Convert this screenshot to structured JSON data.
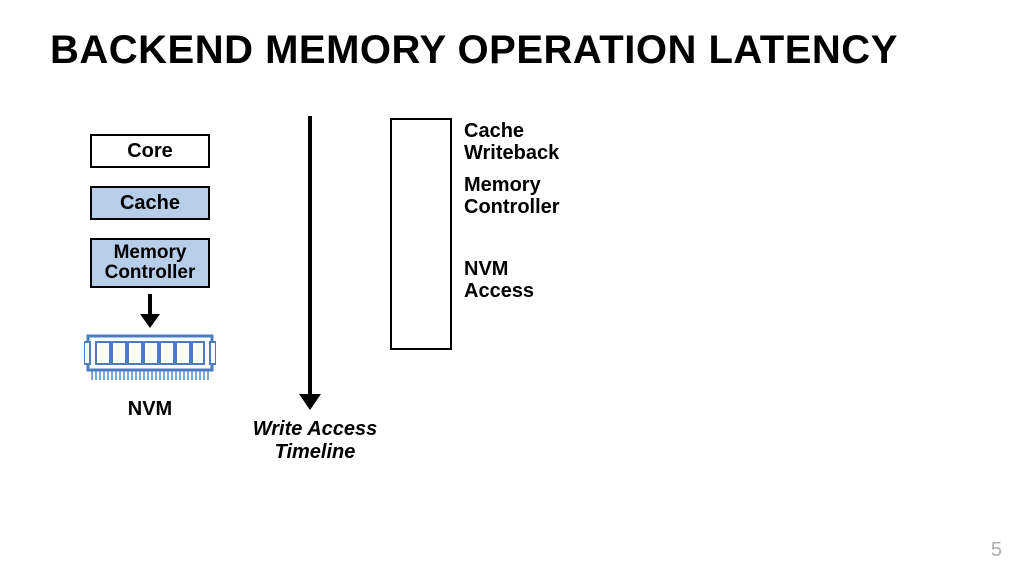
{
  "title": "BACKEND MEMORY OPERATION LATENCY",
  "page_number": "5",
  "colors": {
    "background": "#ffffff",
    "text": "#000000",
    "box_border": "#000000",
    "cache_fill": "#b8cde8",
    "core_fill": "#ffffff",
    "nvm_outline": "#4a7dbf",
    "nvm_fill": "#ffffff",
    "page_num": "#b0b0b0"
  },
  "fonts": {
    "title_size_pt": 40,
    "label_size_pt": 20,
    "family": "Arial"
  },
  "memory_stack": {
    "boxes": [
      {
        "id": "core",
        "label": "Core",
        "fill": "#ffffff"
      },
      {
        "id": "cache",
        "label": "Cache",
        "fill": "#b8cde8"
      },
      {
        "id": "memory_controller",
        "label": "Memory\nController",
        "fill": "#b8cde8"
      }
    ],
    "nvm_label": "NVM"
  },
  "timeline": {
    "arrow_label": "Write Access\nTimeline",
    "stages": [
      {
        "id": "cache_writeback",
        "label": "Cache\nWriteback",
        "relative_height": 54
      },
      {
        "id": "memory_controller_stage",
        "label": "Memory\nController",
        "relative_height": 54
      },
      {
        "id": "nvm_access",
        "label": "NVM\nAccess",
        "relative_height": 128
      }
    ]
  }
}
